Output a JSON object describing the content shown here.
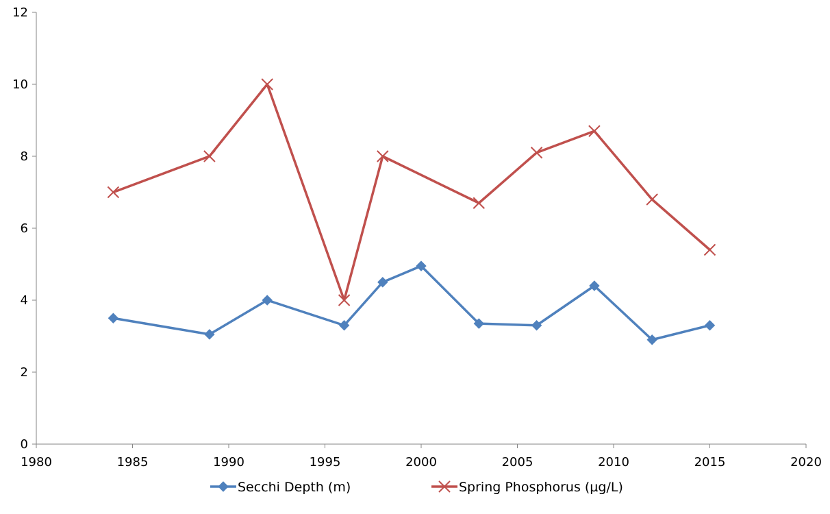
{
  "chart_data": {
    "type": "line",
    "title": "",
    "xlabel": "",
    "ylabel": "",
    "xlim": [
      1980,
      2020
    ],
    "ylim": [
      0,
      12
    ],
    "x_ticks": [
      1980,
      1985,
      1990,
      1995,
      2000,
      2005,
      2010,
      2015,
      2020
    ],
    "y_ticks": [
      0,
      2,
      4,
      6,
      8,
      10,
      12
    ],
    "grid": false,
    "legend_position": "bottom",
    "series": [
      {
        "name": "Secchi Depth (m)",
        "color": "#4F81BD",
        "marker": "diamond",
        "x": [
          1984,
          1989,
          1992,
          1996,
          1998,
          2000,
          2003,
          2006,
          2009,
          2012,
          2015
        ],
        "y": [
          3.5,
          3.05,
          4.0,
          3.3,
          4.5,
          4.95,
          3.35,
          3.3,
          4.4,
          2.9,
          3.3
        ]
      },
      {
        "name": "Spring Phosphorus (µg/L)",
        "color": "#C0504D",
        "marker": "x",
        "x": [
          1984,
          1989,
          1992,
          1996,
          1998,
          2003,
          2006,
          2009,
          2012,
          2015
        ],
        "y": [
          7.0,
          8.0,
          10.0,
          4.0,
          8.0,
          6.7,
          8.1,
          8.7,
          6.8,
          5.4
        ]
      }
    ]
  }
}
